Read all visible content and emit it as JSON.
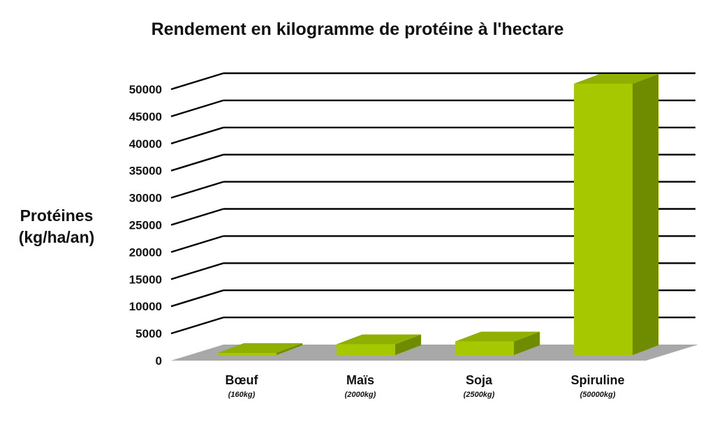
{
  "chart_data": {
    "type": "bar",
    "title": "Rendement en kilogramme de protéine à l'hectare",
    "ylabel_lines": [
      "Protéines",
      "(kg/ha/an)"
    ],
    "categories": [
      "Bœuf",
      "Maïs",
      "Soja",
      "Spiruline"
    ],
    "category_sublabels": [
      "(160kg)",
      "(2000kg)",
      "(2500kg)",
      "(50000kg)"
    ],
    "values": [
      160,
      2000,
      2500,
      50000
    ],
    "ylim": [
      0,
      50000
    ],
    "yticks": [
      "0",
      "5000",
      "10000",
      "15000",
      "20000",
      "25000",
      "30000",
      "35000",
      "40000",
      "45000",
      "50000"
    ],
    "grid": true,
    "style": "3d",
    "colors": {
      "bar_front": "#a6c800",
      "bar_top": "#8fb000",
      "bar_side": "#6f8c00",
      "floor": "#a8a8a8",
      "grid": "#000000"
    }
  }
}
